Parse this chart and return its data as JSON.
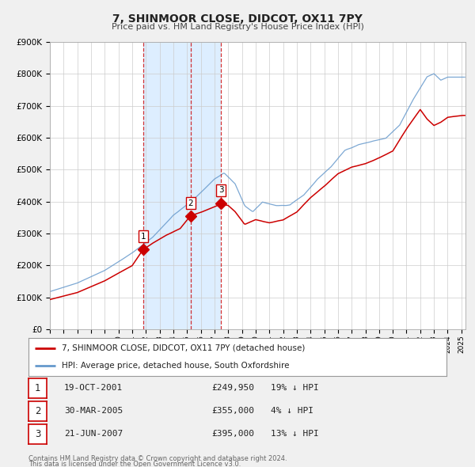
{
  "title": "7, SHINMOOR CLOSE, DIDCOT, OX11 7PY",
  "subtitle": "Price paid vs. HM Land Registry's House Price Index (HPI)",
  "bg_color": "#f0f0f0",
  "plot_bg_color": "#ffffff",
  "shade_color": "#ddeeff",
  "grid_color": "#cccccc",
  "hpi_color": "#6699cc",
  "price_color": "#cc0000",
  "sale_marker_color": "#cc0000",
  "vline_color": "#cc0000",
  "ylim": [
    0,
    900000
  ],
  "yticks": [
    0,
    100000,
    200000,
    300000,
    400000,
    500000,
    600000,
    700000,
    800000,
    900000
  ],
  "ytick_labels": [
    "£0",
    "£100K",
    "£200K",
    "£300K",
    "£400K",
    "£500K",
    "£600K",
    "£700K",
    "£800K",
    "£900K"
  ],
  "sales": [
    {
      "num": 1,
      "date": "19-OCT-2001",
      "price": 249950,
      "pct": "19%",
      "x_year": 2001.79
    },
    {
      "num": 2,
      "date": "30-MAR-2005",
      "price": 355000,
      "pct": "4%",
      "x_year": 2005.25
    },
    {
      "num": 3,
      "date": "21-JUN-2007",
      "price": 395000,
      "pct": "13%",
      "x_year": 2007.47
    }
  ],
  "legend_property_label": "7, SHINMOOR CLOSE, DIDCOT, OX11 7PY (detached house)",
  "legend_hpi_label": "HPI: Average price, detached house, South Oxfordshire",
  "footnote1": "Contains HM Land Registry data © Crown copyright and database right 2024.",
  "footnote2": "This data is licensed under the Open Government Licence v3.0.",
  "xlim_start": 1995.0,
  "xlim_end": 2025.3
}
